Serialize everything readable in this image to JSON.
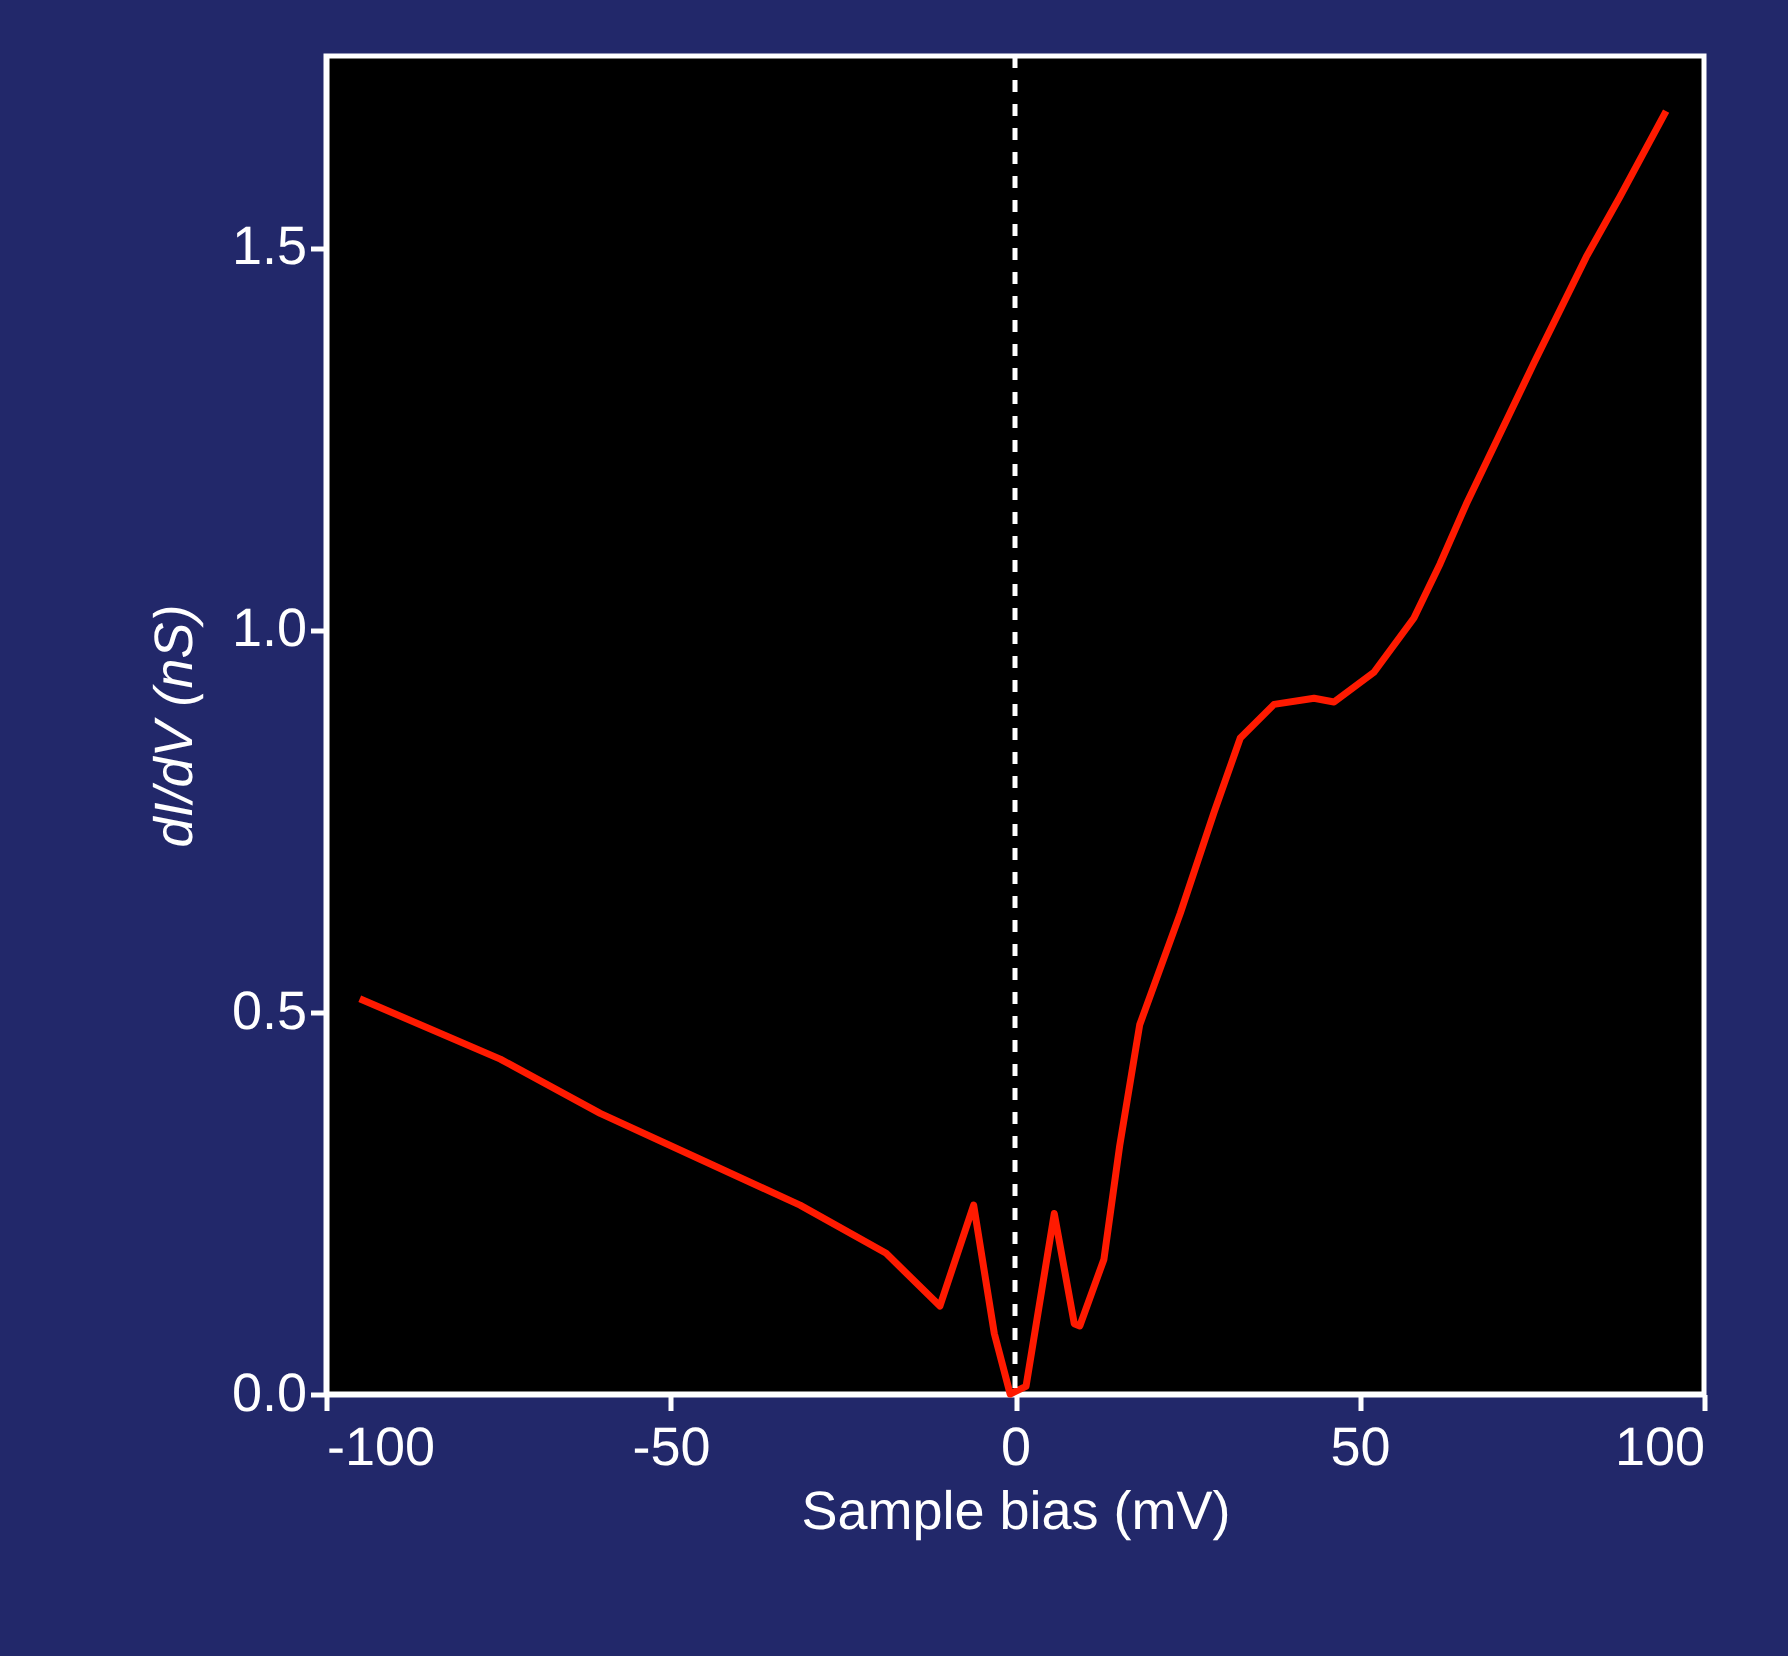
{
  "chart_data": {
    "type": "line",
    "xlabel": "Sample bias (mV)",
    "ylabel": "dI/dV (nS)",
    "xlim": [
      -100,
      100
    ],
    "xticks": [
      -100,
      -50,
      0,
      50,
      100
    ],
    "ylim": [
      0,
      1.75
    ],
    "yticks": [
      {
        "value": 0,
        "label": "0.0"
      },
      0.5,
      {
        "value": 1,
        "label": "1.0"
      },
      1.5
    ],
    "x": [
      -95.1,
      -74.7,
      -60.2,
      -45.7,
      -31.2,
      -18.7,
      -10.9,
      -6.0,
      -3.0,
      -0.7,
      1.6,
      5.7,
      8.6,
      9.4,
      12.9,
      15.2,
      18.1,
      24.0,
      28.9,
      32.7,
      37.6,
      43.4,
      46.3,
      52.1,
      57.9,
      61.7,
      65.5,
      75.3,
      82.9,
      87.8,
      94.5
    ],
    "series": [
      {
        "color": "#ff1a00",
        "values": [
          0.517,
          0.438,
          0.367,
          0.307,
          0.247,
          0.184,
          0.115,
          0.247,
          0.079,
          0.0,
          0.01,
          0.236,
          0.092,
          0.089,
          0.176,
          0.325,
          0.483,
          0.629,
          0.761,
          0.858,
          0.902,
          0.91,
          0.905,
          0.944,
          1.015,
          1.086,
          1.164,
          1.348,
          1.487,
          1.566,
          1.678
        ]
      }
    ],
    "ref_lines": [
      {
        "axis": "x",
        "value": 0,
        "color": "#ffffff",
        "line_style": "dashed"
      }
    ],
    "grid": false,
    "marker": "none",
    "line_style": "solid"
  }
}
